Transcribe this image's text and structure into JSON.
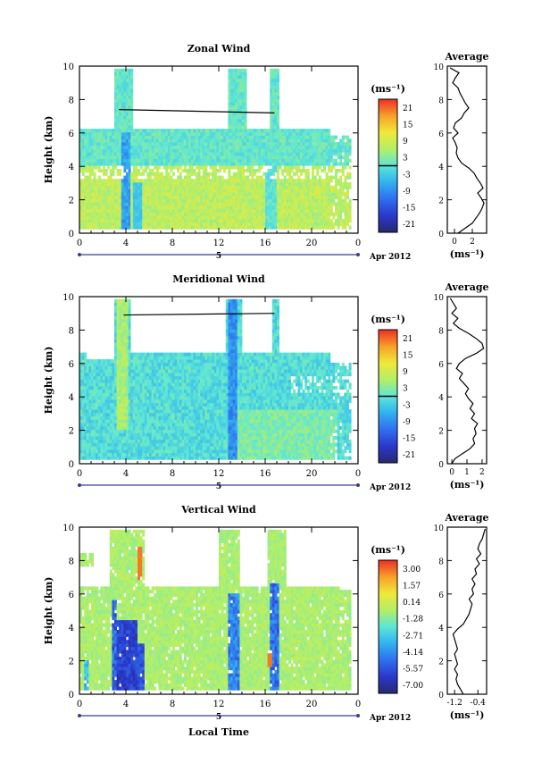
{
  "chart_data": [
    {
      "type": "heatmap",
      "title": "Zonal Wind",
      "ylabel": "Height (km)",
      "xlabel": "",
      "x_ticks": [
        "0",
        "4",
        "8",
        "12",
        "16",
        "20",
        "0"
      ],
      "y_ticks": [
        "0",
        "2",
        "4",
        "6",
        "8",
        "10"
      ],
      "xlim": [
        0,
        24
      ],
      "ylim": [
        0,
        10
      ],
      "date_day": "5",
      "date_label": "Apr 2012",
      "colorbar_unit": "(ms⁻¹)",
      "colorbar_ticks": [
        "21",
        "15",
        "9",
        "3",
        "-3",
        "-9",
        "-15",
        "-21"
      ],
      "colorbar_range": [
        -24,
        24
      ],
      "gap_line": {
        "x": [
          3.4,
          16.8
        ],
        "y": [
          7.4,
          7.2
        ]
      },
      "average": {
        "title": "Average",
        "xlabel": "(ms⁻¹)",
        "x_ticks": [
          "0",
          "2"
        ],
        "x_tick_values": [
          0,
          2
        ],
        "xlim": [
          -0.8,
          3.6
        ],
        "profile_height": [
          0.0,
          0.3,
          0.6,
          0.9,
          1.2,
          1.5,
          1.8,
          2.1,
          2.4,
          2.7,
          3.0,
          3.3,
          3.6,
          3.9,
          4.2,
          4.5,
          4.8,
          5.1,
          5.4,
          5.7,
          6.0,
          6.3,
          6.6,
          6.9,
          7.2,
          7.5,
          7.8,
          8.1,
          8.4,
          8.7,
          9.0,
          9.3,
          9.6,
          9.9
        ],
        "profile_value": [
          0.4,
          1.2,
          2.0,
          2.4,
          2.8,
          3.1,
          3.3,
          3.0,
          2.6,
          3.2,
          2.9,
          2.5,
          2.2,
          1.6,
          0.8,
          0.4,
          0.2,
          0.3,
          0.1,
          -0.2,
          0.4,
          -0.1,
          0.1,
          0.8,
          1.1,
          1.6,
          1.2,
          0.9,
          0.6,
          0.4,
          -0.2,
          0.1,
          0.5,
          -0.5
        ]
      }
    },
    {
      "type": "heatmap",
      "title": "Meridional Wind",
      "ylabel": "Height (km)",
      "xlabel": "",
      "x_ticks": [
        "0",
        "4",
        "8",
        "12",
        "16",
        "20",
        "0"
      ],
      "y_ticks": [
        "0",
        "2",
        "4",
        "6",
        "8",
        "10"
      ],
      "xlim": [
        0,
        24
      ],
      "ylim": [
        0,
        10
      ],
      "date_day": "5",
      "date_label": "Apr 2012",
      "colorbar_unit": "(ms⁻¹)",
      "colorbar_ticks": [
        "21",
        "15",
        "9",
        "3",
        "-3",
        "-9",
        "-15",
        "-21"
      ],
      "colorbar_range": [
        -24,
        24
      ],
      "gap_line": {
        "x": [
          3.8,
          16.8
        ],
        "y": [
          8.9,
          9.0
        ]
      },
      "average": {
        "title": "Average",
        "xlabel": "(ms⁻¹)",
        "x_ticks": [
          "0",
          "1",
          "2"
        ],
        "x_tick_values": [
          0,
          1,
          2
        ],
        "xlim": [
          -0.3,
          2.3
        ],
        "profile_height": [
          0.0,
          0.3,
          0.6,
          0.9,
          1.2,
          1.5,
          1.8,
          2.1,
          2.4,
          2.7,
          3.0,
          3.3,
          3.6,
          3.9,
          4.2,
          4.5,
          4.8,
          5.1,
          5.4,
          5.7,
          6.0,
          6.3,
          6.6,
          6.9,
          7.2,
          7.5,
          7.8,
          8.1,
          8.4,
          8.7,
          9.0,
          9.3,
          9.6,
          9.9
        ],
        "profile_value": [
          0.0,
          0.2,
          0.7,
          1.2,
          1.5,
          1.4,
          1.6,
          1.5,
          1.7,
          1.3,
          1.5,
          1.2,
          1.4,
          1.1,
          0.9,
          1.1,
          0.8,
          0.5,
          0.7,
          0.3,
          0.5,
          0.9,
          1.6,
          2.1,
          2.0,
          1.6,
          1.1,
          0.5,
          0.1,
          0.4,
          0.0,
          0.3,
          0.1,
          -0.1
        ]
      }
    },
    {
      "type": "heatmap",
      "title": "Vertical Wind",
      "ylabel": "Height (km)",
      "xlabel": "Local Time",
      "x_ticks": [
        "0",
        "4",
        "8",
        "12",
        "16",
        "20",
        "0"
      ],
      "y_ticks": [
        "0",
        "2",
        "4",
        "6",
        "8",
        "10"
      ],
      "xlim": [
        0,
        24
      ],
      "ylim": [
        0,
        10
      ],
      "date_day": "5",
      "date_label": "Apr 2012",
      "colorbar_unit": "(ms⁻¹)",
      "colorbar_ticks": [
        "3.00",
        "1.57",
        "0.14",
        "-1.28",
        "-2.71",
        "-4.14",
        "-5.57",
        "-7.00"
      ],
      "colorbar_range": [
        -8.0,
        4.0
      ],
      "average": {
        "title": "Average",
        "xlabel": "(ms⁻¹)",
        "x_ticks": [
          "-1.2",
          "-0.4"
        ],
        "x_tick_values": [
          -1.2,
          -0.4
        ],
        "xlim": [
          -1.45,
          -0.1
        ],
        "profile_height": [
          0.0,
          0.3,
          0.6,
          0.9,
          1.2,
          1.5,
          1.8,
          2.1,
          2.4,
          2.7,
          3.0,
          3.3,
          3.6,
          3.9,
          4.2,
          4.5,
          4.8,
          5.1,
          5.4,
          5.7,
          6.0,
          6.3,
          6.6,
          6.9,
          7.2,
          7.5,
          7.8,
          8.1,
          8.4,
          8.7,
          9.0,
          9.3,
          9.6,
          9.9
        ],
        "profile_value": [
          -0.9,
          -1.0,
          -1.1,
          -1.15,
          -1.1,
          -1.2,
          -1.1,
          -1.15,
          -1.2,
          -1.1,
          -1.15,
          -1.2,
          -1.25,
          -1.1,
          -0.9,
          -0.8,
          -0.7,
          -0.65,
          -0.6,
          -0.7,
          -0.55,
          -0.6,
          -0.5,
          -0.6,
          -0.45,
          -0.5,
          -0.35,
          -0.45,
          -0.3,
          -0.4,
          -0.35,
          -0.25,
          -0.2,
          -0.15
        ]
      }
    }
  ]
}
